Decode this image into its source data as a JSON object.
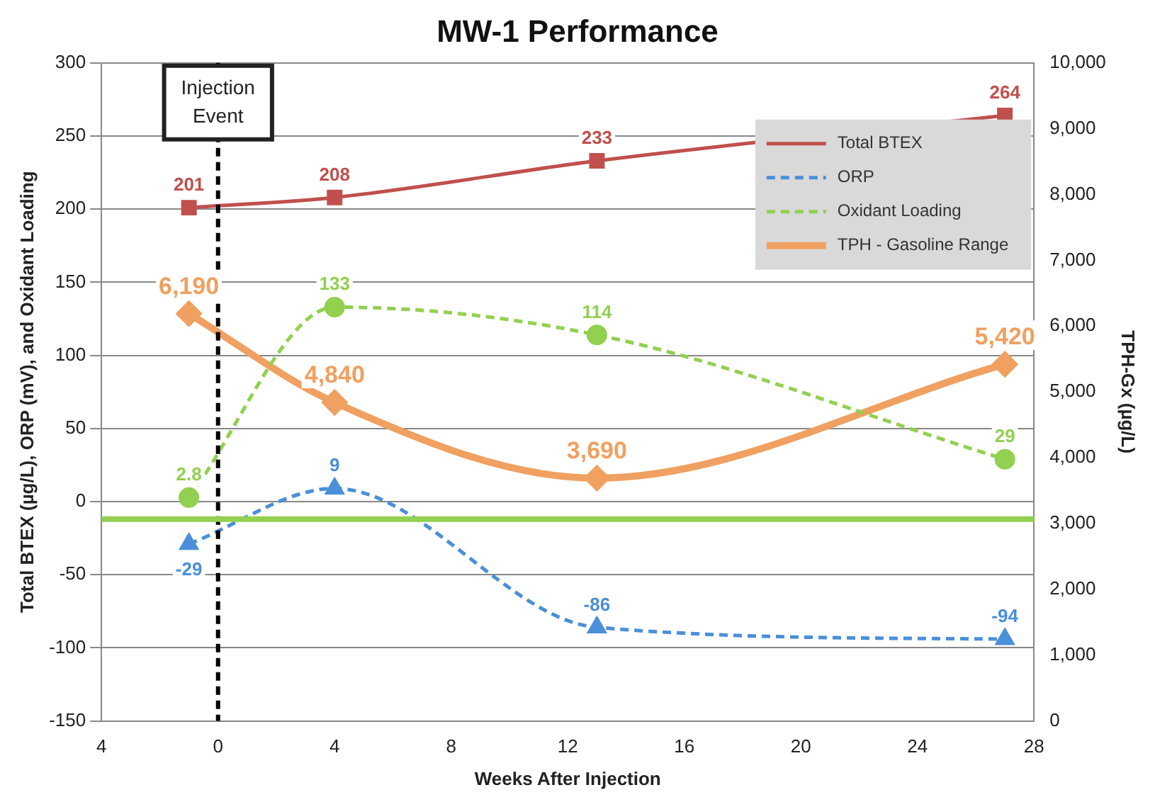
{
  "chart_data": {
    "type": "line",
    "title": "MW-1 Performance",
    "xlabel": "Weeks After Injection",
    "ylabel": "Total BTEX (µg/L), ORP (mV), and Oxidant Loading",
    "y2label": "TPH-Gx (µg/L)",
    "x": [
      -1,
      4,
      13,
      27
    ],
    "xlim": [
      -4,
      28
    ],
    "xticks": [
      {
        "value": -4,
        "label": "4"
      },
      0,
      4,
      8,
      12,
      16,
      20,
      24,
      28
    ],
    "ylim": [
      -150,
      300
    ],
    "yticks": [
      -150,
      -100,
      -50,
      0,
      50,
      100,
      150,
      200,
      250,
      300
    ],
    "y2lim": [
      0,
      10000
    ],
    "y2ticks": [
      {
        "value": 0,
        "label": "0"
      },
      {
        "value": 1000,
        "label": "1,000"
      },
      {
        "value": 2000,
        "label": "2,000"
      },
      {
        "value": 3000,
        "label": "3,000"
      },
      {
        "value": 4000,
        "label": "4,000"
      },
      {
        "value": 5000,
        "label": "5,000"
      },
      {
        "value": 6000,
        "label": "6,000"
      },
      {
        "value": 7000,
        "label": "7,000"
      },
      {
        "value": 8000,
        "label": "8,000"
      },
      {
        "value": 9000,
        "label": "9,000"
      },
      {
        "value": 10000,
        "label": "10,000"
      }
    ],
    "series": [
      {
        "name": "Total BTEX",
        "color": "#c0504d",
        "values": [
          201,
          208,
          233,
          264
        ],
        "value_labels": [
          "201",
          "208",
          "233",
          "264"
        ],
        "marker": "square",
        "line_style": "solid"
      },
      {
        "name": "ORP",
        "color": "#4a8fd8",
        "values": [
          -29,
          9,
          -86,
          -94
        ],
        "value_labels": [
          "-29",
          "9",
          "-86",
          "-94"
        ],
        "marker": "triangle",
        "line_style": "dashed"
      },
      {
        "name": "Oxidant Loading",
        "color": "#92d050",
        "values": [
          2.8,
          133,
          114,
          29
        ],
        "value_labels": [
          "2.8",
          "133",
          "114",
          "29"
        ],
        "marker": "circle",
        "line_style": "dashed"
      },
      {
        "name": "TPH - Gasoline Range",
        "color": "#f0a060",
        "axis": "y2",
        "values": [
          6190,
          4840,
          3690,
          5420
        ],
        "value_labels": [
          "6,190",
          "4,840",
          "3,690",
          "5,420"
        ],
        "marker": "diamond",
        "line_style": "solid"
      }
    ],
    "ref_lines": [
      {
        "axis": "x",
        "value": 0,
        "label": "Injection Event",
        "color": "#000000",
        "line_style": "dashed"
      },
      {
        "axis": "y",
        "value": -12,
        "color": "#92d050",
        "line_style": "solid"
      }
    ],
    "grid": "y",
    "legend": "top right"
  }
}
